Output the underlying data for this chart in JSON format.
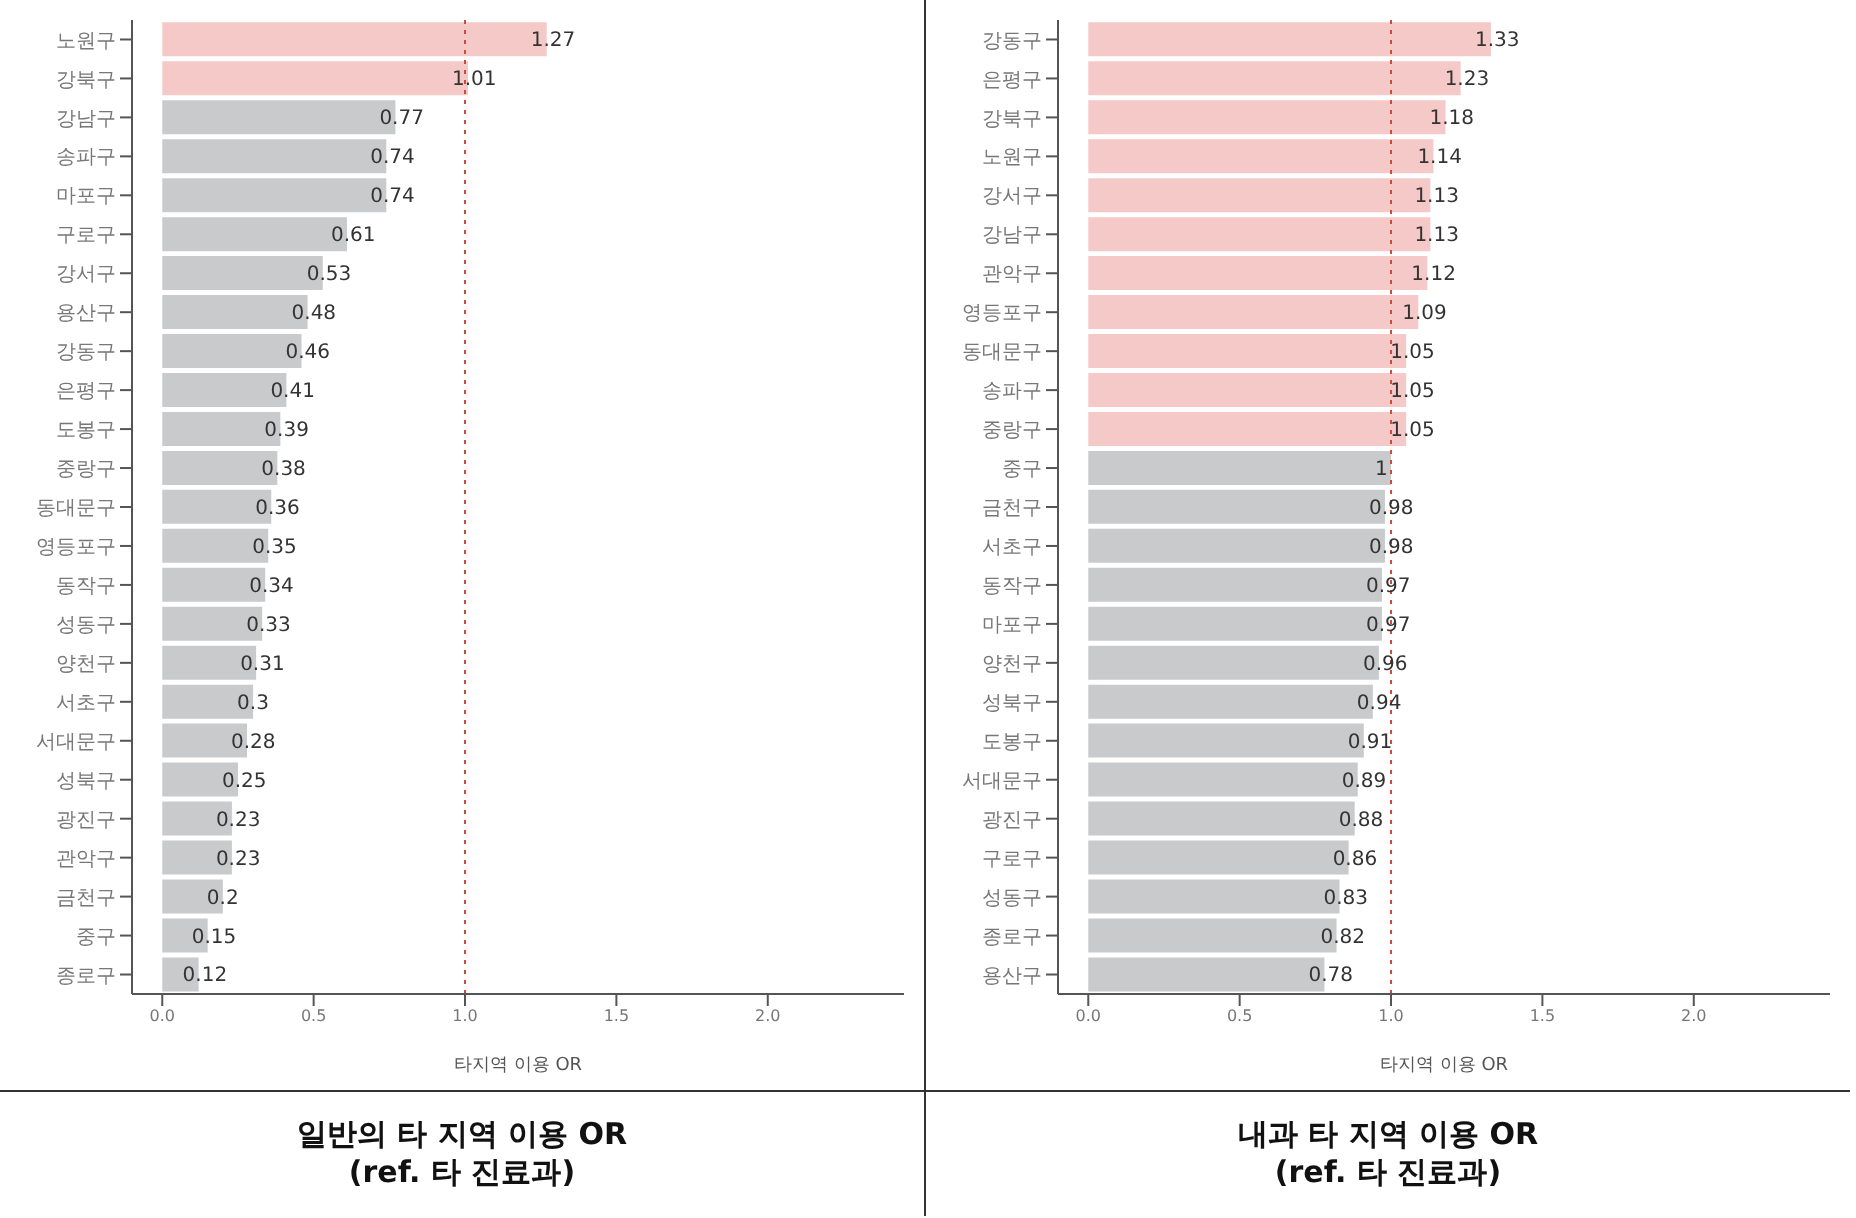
{
  "chart_data": [
    {
      "type": "bar",
      "orientation": "horizontal",
      "title": "일반의 타 지역 이용 OR\n(ref. 타 진료과)",
      "xlabel": "타지역 이용 OR",
      "categories": [
        "노원구",
        "강북구",
        "강남구",
        "송파구",
        "마포구",
        "구로구",
        "강서구",
        "용산구",
        "강동구",
        "은평구",
        "도봉구",
        "중랑구",
        "동대문구",
        "영등포구",
        "동작구",
        "성동구",
        "양천구",
        "서초구",
        "서대문구",
        "성북구",
        "광진구",
        "관악구",
        "금천구",
        "중구",
        "종로구"
      ],
      "values": [
        1.27,
        1.01,
        0.77,
        0.74,
        0.74,
        0.61,
        0.53,
        0.48,
        0.46,
        0.41,
        0.39,
        0.38,
        0.36,
        0.35,
        0.34,
        0.33,
        0.31,
        0.3,
        0.28,
        0.25,
        0.23,
        0.23,
        0.2,
        0.15,
        0.12
      ],
      "colors": [
        "#f6c9c9",
        "#f6c9c9",
        "#c9cacc",
        "#c9cacc",
        "#c9cacc",
        "#c9cacc",
        "#c9cacc",
        "#c9cacc",
        "#c9cacc",
        "#c9cacc",
        "#c9cacc",
        "#c9cacc",
        "#c9cacc",
        "#c9cacc",
        "#c9cacc",
        "#c9cacc",
        "#c9cacc",
        "#c9cacc",
        "#c9cacc",
        "#c9cacc",
        "#c9cacc",
        "#c9cacc",
        "#c9cacc",
        "#c9cacc",
        "#c9cacc"
      ],
      "data_labels": true,
      "xlim": [
        -0.1,
        2.45
      ],
      "xticks": [
        {
          "value": 0,
          "label": "0.0"
        },
        {
          "value": 0.5,
          "label": "0.5"
        },
        {
          "value": 1,
          "label": "1.0"
        },
        {
          "value": 1.5,
          "label": "1.5"
        },
        {
          "value": 2,
          "label": "2.0"
        }
      ],
      "ref_lines": [
        {
          "axis": "x",
          "value": 1,
          "color": "#d04a3a",
          "line_style": "dotted"
        }
      ]
    },
    {
      "type": "bar",
      "orientation": "horizontal",
      "title": "내과 타 지역 이용 OR\n(ref. 타 진료과)",
      "xlabel": "타지역 이용 OR",
      "categories": [
        "강동구",
        "은평구",
        "강북구",
        "노원구",
        "강서구",
        "강남구",
        "관악구",
        "영등포구",
        "동대문구",
        "송파구",
        "중랑구",
        "중구",
        "금천구",
        "서초구",
        "동작구",
        "마포구",
        "양천구",
        "성북구",
        "도봉구",
        "서대문구",
        "광진구",
        "구로구",
        "성동구",
        "종로구",
        "용산구"
      ],
      "values": [
        1.33,
        1.23,
        1.18,
        1.14,
        1.13,
        1.13,
        1.12,
        1.09,
        1.05,
        1.05,
        1.05,
        1,
        0.98,
        0.98,
        0.97,
        0.97,
        0.96,
        0.94,
        0.91,
        0.89,
        0.88,
        0.86,
        0.83,
        0.82,
        0.78
      ],
      "colors": [
        "#f6c9c9",
        "#f6c9c9",
        "#f6c9c9",
        "#f6c9c9",
        "#f6c9c9",
        "#f6c9c9",
        "#f6c9c9",
        "#f6c9c9",
        "#f6c9c9",
        "#f6c9c9",
        "#f6c9c9",
        "#c9cacc",
        "#c9cacc",
        "#c9cacc",
        "#c9cacc",
        "#c9cacc",
        "#c9cacc",
        "#c9cacc",
        "#c9cacc",
        "#c9cacc",
        "#c9cacc",
        "#c9cacc",
        "#c9cacc",
        "#c9cacc",
        "#c9cacc"
      ],
      "data_labels": true,
      "xlim": [
        -0.1,
        2.45
      ],
      "xticks": [
        {
          "value": 0,
          "label": "0.0"
        },
        {
          "value": 0.5,
          "label": "0.5"
        },
        {
          "value": 1,
          "label": "1.0"
        },
        {
          "value": 1.5,
          "label": "1.5"
        },
        {
          "value": 2,
          "label": "2.0"
        }
      ],
      "ref_lines": [
        {
          "axis": "x",
          "value": 1,
          "color": "#d04a3a",
          "line_style": "dotted"
        }
      ]
    }
  ]
}
